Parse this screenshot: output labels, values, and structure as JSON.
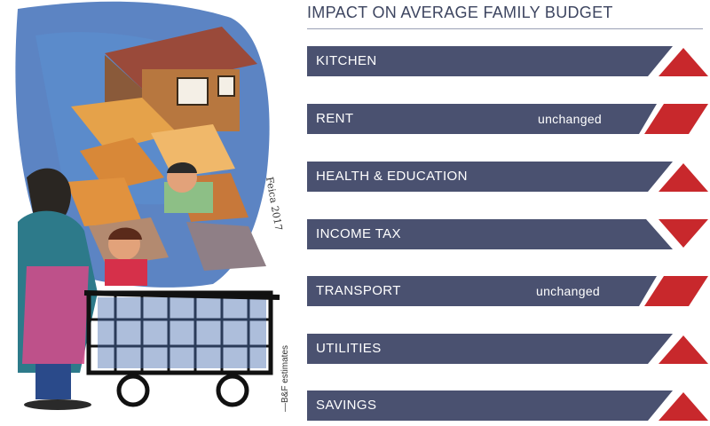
{
  "title": "IMPACT ON AVERAGE FAMILY BUDGET",
  "credit": "—B&F estimates",
  "signature": "Feica 2017",
  "colors": {
    "bar": "#4a5170",
    "arrow": "#c8282c",
    "title": "#3d4560"
  },
  "rows": [
    {
      "label": "KITCHEN",
      "note": "",
      "trend": "up",
      "icon": "arrow-up-icon"
    },
    {
      "label": "RENT",
      "note": "unchanged",
      "trend": "unchanged",
      "icon": "parallelogram-icon"
    },
    {
      "label": "HEALTH & EDUCATION",
      "note": "",
      "trend": "up",
      "icon": "arrow-up-icon"
    },
    {
      "label": "INCOME TAX",
      "note": "",
      "trend": "down",
      "icon": "arrow-down-icon"
    },
    {
      "label": "TRANSPORT",
      "note": "unchanged",
      "trend": "unchanged",
      "icon": "parallelogram-icon"
    },
    {
      "label": "UTILITIES",
      "note": "",
      "trend": "up",
      "icon": "arrow-up-icon"
    },
    {
      "label": "SAVINGS",
      "note": "",
      "trend": "up",
      "icon": "arrow-up-icon"
    }
  ]
}
